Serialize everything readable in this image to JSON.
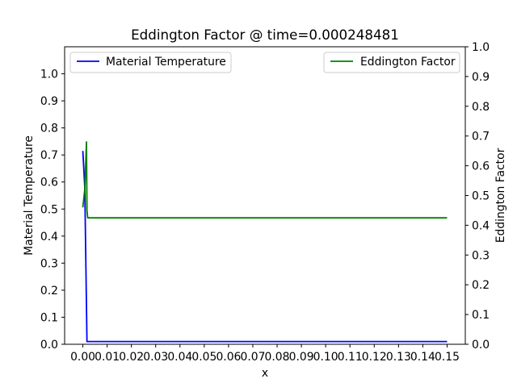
{
  "chart_data": {
    "type": "line",
    "title": "Eddington Factor @ time=0.000248481",
    "xlabel": "x",
    "ylabel_left": "Material Temperature",
    "ylabel_right": "Eddington Factor",
    "xlim": [
      -0.0075,
      0.1575
    ],
    "ylim_left": [
      0.0,
      1.1
    ],
    "ylim_right": [
      0.0,
      1.0
    ],
    "x_ticks": [
      0.0,
      0.01,
      0.02,
      0.03,
      0.04,
      0.05,
      0.06,
      0.07,
      0.08,
      0.09,
      0.1,
      0.11,
      0.12,
      0.13,
      0.14,
      0.15
    ],
    "x_tick_labels": [
      "0.00",
      "0.01",
      "0.02",
      "0.03",
      "0.04",
      "0.05",
      "0.06",
      "0.07",
      "0.08",
      "0.09",
      "0.10",
      "0.11",
      "0.12",
      "0.13",
      "0.14",
      "0.15"
    ],
    "y_left_ticks": [
      0.0,
      0.1,
      0.2,
      0.3,
      0.4,
      0.5,
      0.6,
      0.7,
      0.8,
      0.9,
      1.0
    ],
    "y_left_tick_labels": [
      "0.0",
      "0.1",
      "0.2",
      "0.3",
      "0.4",
      "0.5",
      "0.6",
      "0.7",
      "0.8",
      "0.9",
      "1.0"
    ],
    "y_right_ticks": [
      0.0,
      0.1,
      0.2,
      0.3,
      0.4,
      0.5,
      0.6,
      0.7,
      0.8,
      0.9,
      1.0
    ],
    "y_right_tick_labels": [
      "0.0",
      "0.1",
      "0.2",
      "0.3",
      "0.4",
      "0.5",
      "0.6",
      "0.7",
      "0.8",
      "0.9",
      "1.0"
    ],
    "grid": false,
    "series": [
      {
        "name": "Material Temperature",
        "axis": "left",
        "color": "#0000ff",
        "x": [
          0.0,
          0.0008,
          0.0017,
          0.15
        ],
        "y": [
          0.715,
          0.58,
          0.01,
          0.01
        ]
      },
      {
        "name": "Eddington Factor",
        "axis": "right",
        "color": "#008000",
        "x": [
          0.0,
          0.0008,
          0.0015,
          0.0017,
          0.002,
          0.15
        ],
        "y": [
          0.46,
          0.52,
          0.68,
          0.45,
          0.425,
          0.425
        ]
      }
    ],
    "legends": [
      {
        "placement": "upper left",
        "series": "Material Temperature"
      },
      {
        "placement": "upper right",
        "series": "Eddington Factor"
      }
    ]
  }
}
